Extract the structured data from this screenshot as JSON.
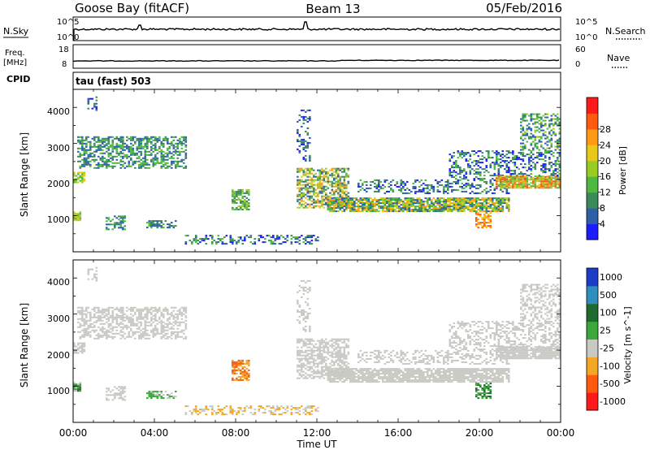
{
  "header": {
    "station": "Goose Bay (fitACF)",
    "beam": "Beam 13",
    "date": "05/Feb/2016"
  },
  "left_labels": {
    "nsky": "N.Sky",
    "freq_line1": "Freq.",
    "freq_line2": "[MHz]",
    "cpid": "CPID"
  },
  "right_labels": {
    "nsearch": "N.Search",
    "nave": "Nave"
  },
  "cpid_text": "tau (fast) 503",
  "colors": {
    "power": [
      "#1c1cff",
      "#2e5ea8",
      "#3a8a5a",
      "#4fb840",
      "#98cc22",
      "#e8c81a",
      "#ff9a14",
      "#ff5a10",
      "#ff1a1a"
    ],
    "velocity": [
      "#ff1a1a",
      "#ff5a10",
      "#f5a623",
      "#c9c9c4",
      "#3aa83a",
      "#1f6a2e",
      "#2e8fbf",
      "#1c3cc8"
    ]
  },
  "chart_data": [
    {
      "type": "line",
      "name": "noise",
      "series": [
        {
          "values": "roughly constant near 10^4"
        },
        {
          "values": "dotted, near top"
        }
      ],
      "left_ticks": [
        "10^5",
        "10^0"
      ],
      "right_ticks": [
        "10^5",
        "10^0"
      ]
    },
    {
      "type": "line",
      "name": "freq",
      "left_ticks": [
        "18",
        "8"
      ],
      "right_ticks": [
        "60",
        "0"
      ],
      "series": [
        {
          "values": "≈10 MHz constant"
        },
        {
          "values": "dotted near 0"
        }
      ]
    },
    {
      "type": "heatmap",
      "name": "power",
      "ylabel": "Slant Range [km]",
      "y_ticks": [
        "1000",
        "2000",
        "3000",
        "4000"
      ],
      "colorbar_label": "Power [dB]",
      "colorbar_ticks": [
        "4",
        "8",
        "12",
        "16",
        "20",
        "24",
        "28"
      ]
    },
    {
      "type": "heatmap",
      "name": "velocity",
      "ylabel": "Slant Range [km]",
      "y_ticks": [
        "1000",
        "2000",
        "3000",
        "4000"
      ],
      "colorbar_label": "Velocity [m s^-1]",
      "colorbar_ticks": [
        "1000",
        "500",
        "100",
        "25",
        "-25",
        "-100",
        "-500",
        "-1000"
      ],
      "xlabel": "Time UT",
      "x_ticks": [
        "00:00",
        "04:00",
        "08:00",
        "12:00",
        "16:00",
        "20:00",
        "00:00"
      ]
    }
  ]
}
